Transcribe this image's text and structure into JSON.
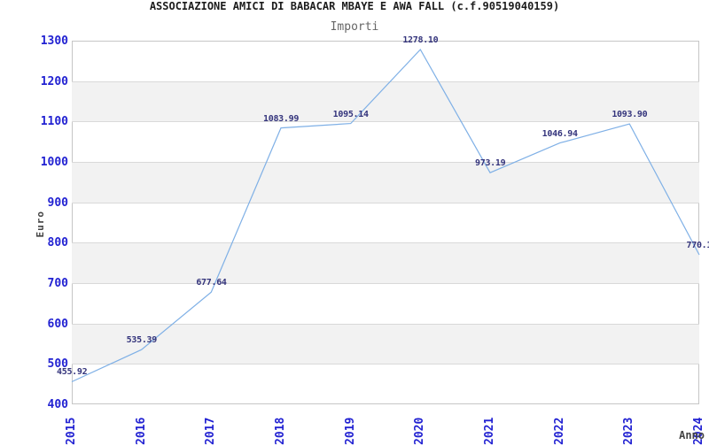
{
  "title": "ASSOCIAZIONE AMICI DI BABACAR MBAYE E AWA FALL (c.f.90519040159)",
  "subtitle": "Importi",
  "chart_data": {
    "type": "line",
    "title": "Importi",
    "xlabel": "Anno",
    "ylabel": "Euro",
    "x": [
      "2015",
      "2016",
      "2017",
      "2018",
      "2019",
      "2020",
      "2021",
      "2022",
      "2023",
      "2024"
    ],
    "values": [
      455.92,
      535.39,
      677.64,
      1083.99,
      1095.14,
      1278.1,
      973.19,
      1046.94,
      1093.9,
      770.1
    ],
    "point_labels": [
      "455.92",
      "535.39",
      "677.64",
      "1083.99",
      "1095.14",
      "1278.10",
      "973.19",
      "1046.94",
      "1093.90",
      "770.1"
    ],
    "ylim": [
      400,
      1300
    ],
    "ytick_step": 100,
    "yticks": [
      "400",
      "500",
      "600",
      "700",
      "800",
      "900",
      "1000",
      "1100",
      "1200",
      "1300"
    ],
    "grid": "horizontal",
    "legend": "none",
    "band_ranges": [
      [
        500,
        600
      ],
      [
        700,
        800
      ],
      [
        900,
        1000
      ],
      [
        1100,
        1200
      ]
    ]
  },
  "colors": {
    "line": "#7fb0e6",
    "tick_label": "#2222d2",
    "point_label": "#34347c",
    "band": "#f2f2f2",
    "gridline": "#d9d9d9",
    "frame": "#c6c6c6",
    "title": "#1c1c1c",
    "subtitle": "#666666",
    "axis_label": "#444444"
  }
}
